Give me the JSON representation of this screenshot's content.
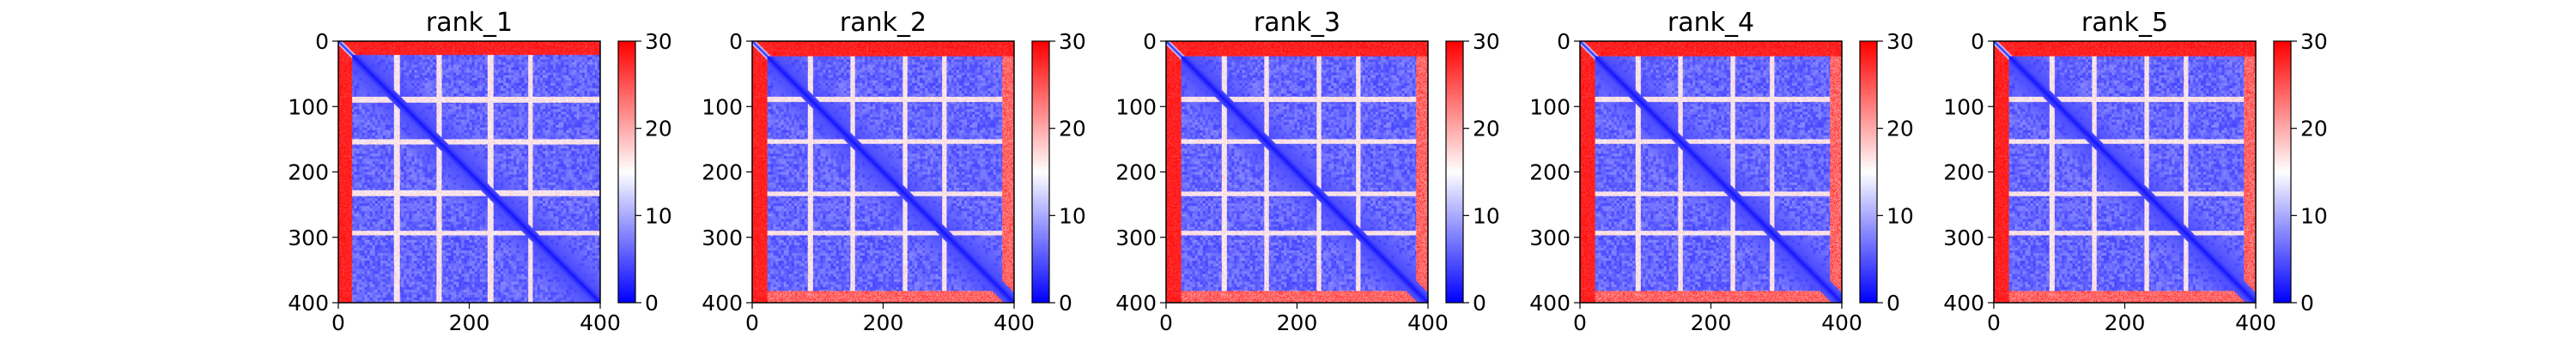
{
  "chart_data": [
    {
      "type": "heatmap",
      "title": "rank_1",
      "x_ticks": [
        "0",
        "200",
        "400"
      ],
      "y_ticks": [
        "0",
        "100",
        "200",
        "300",
        "400"
      ],
      "xlim": [
        0,
        400
      ],
      "ylim": [
        400,
        0
      ],
      "colorbar": {
        "min": 0,
        "max": 30,
        "ticks": [
          "0",
          "10",
          "20",
          "30"
        ],
        "colormap": "bwr"
      },
      "features": {
        "far_row_band": [
          0,
          20
        ],
        "far_col_band": [
          0,
          20
        ],
        "bright_rows": [
          [
            85,
            93
          ],
          [
            150,
            157
          ],
          [
            228,
            236
          ],
          [
            290,
            296
          ]
        ],
        "near_diagonal_low": true,
        "bottom_band": false
      }
    },
    {
      "type": "heatmap",
      "title": "rank_2",
      "x_ticks": [
        "0",
        "200",
        "400"
      ],
      "y_ticks": [
        "0",
        "100",
        "200",
        "300",
        "400"
      ],
      "xlim": [
        0,
        400
      ],
      "ylim": [
        400,
        0
      ],
      "colorbar": {
        "min": 0,
        "max": 30,
        "ticks": [
          "0",
          "10",
          "20",
          "30"
        ],
        "colormap": "bwr"
      },
      "features": {
        "far_row_band": [
          0,
          22
        ],
        "far_col_band": [
          0,
          25
        ],
        "bright_rows": [
          [
            85,
            92
          ],
          [
            150,
            156
          ],
          [
            230,
            236
          ],
          [
            290,
            296
          ]
        ],
        "near_diagonal_low": true,
        "bottom_band": true
      }
    },
    {
      "type": "heatmap",
      "title": "rank_3",
      "x_ticks": [
        "0",
        "200",
        "400"
      ],
      "y_ticks": [
        "0",
        "100",
        "200",
        "300",
        "400"
      ],
      "xlim": [
        0,
        400
      ],
      "ylim": [
        400,
        0
      ],
      "colorbar": {
        "min": 0,
        "max": 30,
        "ticks": [
          "0",
          "10",
          "20",
          "30"
        ],
        "colormap": "bwr"
      },
      "features": {
        "far_row_band": [
          0,
          22
        ],
        "far_col_band": [
          0,
          25
        ],
        "bright_rows": [
          [
            85,
            92
          ],
          [
            150,
            156
          ],
          [
            230,
            236
          ],
          [
            290,
            296
          ]
        ],
        "near_diagonal_low": true,
        "bottom_band": true
      }
    },
    {
      "type": "heatmap",
      "title": "rank_4",
      "x_ticks": [
        "0",
        "200",
        "400"
      ],
      "y_ticks": [
        "0",
        "100",
        "200",
        "300",
        "400"
      ],
      "xlim": [
        0,
        400
      ],
      "ylim": [
        400,
        0
      ],
      "colorbar": {
        "min": 0,
        "max": 30,
        "ticks": [
          "0",
          "10",
          "20",
          "30"
        ],
        "colormap": "bwr"
      },
      "features": {
        "far_row_band": [
          0,
          22
        ],
        "far_col_band": [
          0,
          25
        ],
        "bright_rows": [
          [
            85,
            92
          ],
          [
            150,
            156
          ],
          [
            230,
            236
          ],
          [
            290,
            296
          ]
        ],
        "near_diagonal_low": true,
        "bottom_band": true
      }
    },
    {
      "type": "heatmap",
      "title": "rank_5",
      "x_ticks": [
        "0",
        "200",
        "400"
      ],
      "y_ticks": [
        "0",
        "100",
        "200",
        "300",
        "400"
      ],
      "xlim": [
        0,
        400
      ],
      "ylim": [
        400,
        0
      ],
      "colorbar": {
        "min": 0,
        "max": 30,
        "ticks": [
          "0",
          "10",
          "20",
          "30"
        ],
        "colormap": "bwr"
      },
      "features": {
        "far_row_band": [
          0,
          22
        ],
        "far_col_band": [
          0,
          25
        ],
        "bright_rows": [
          [
            85,
            92
          ],
          [
            150,
            156
          ],
          [
            230,
            236
          ],
          [
            290,
            296
          ]
        ],
        "near_diagonal_low": true,
        "bottom_band": true
      }
    }
  ]
}
